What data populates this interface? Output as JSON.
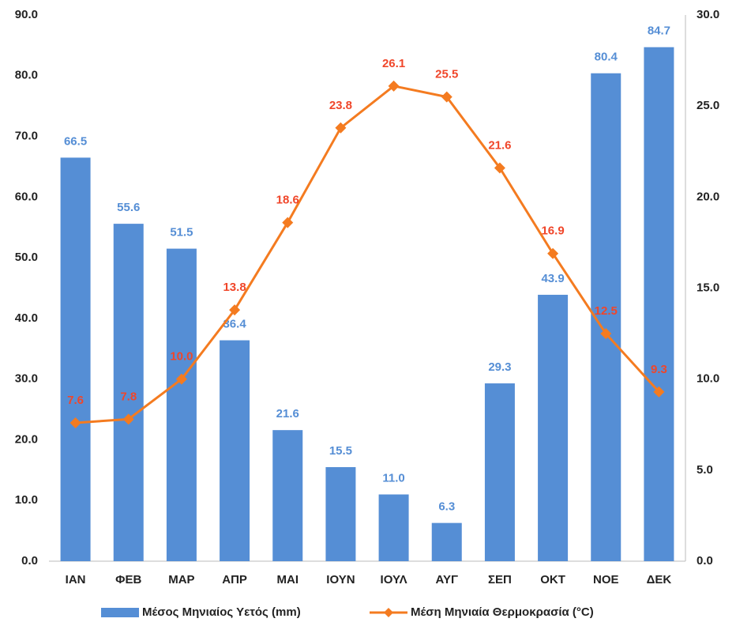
{
  "chart_data": {
    "type": "bar",
    "categories": [
      "ΙΑΝ",
      "ΦΕΒ",
      "ΜΑΡ",
      "ΑΠΡ",
      "ΜΑΙ",
      "ΙΟΥΝ",
      "ΙΟΥΛ",
      "ΑΥΓ",
      "ΣΕΠ",
      "ΟΚΤ",
      "ΝΟΕ",
      "ΔΕΚ"
    ],
    "series": [
      {
        "name": "Μέσος Μηνιαίος Υετός (mm)",
        "type": "bar",
        "color": "#558ed5",
        "label_color": "#558ed5",
        "values": [
          66.5,
          55.6,
          51.5,
          36.4,
          21.6,
          15.5,
          11.0,
          6.3,
          29.3,
          43.9,
          80.4,
          84.7
        ],
        "value_labels": [
          "66.5",
          "55.6",
          "51.5",
          "36.4",
          "21.6",
          "15.5",
          "11.0",
          "6.3",
          "29.3",
          "43.9",
          "80.4",
          "84.7"
        ]
      },
      {
        "name": "Μέση Μηνιαία Θερμοκρασία (°C)",
        "type": "line",
        "axis": "y2",
        "color": "#f47b20",
        "label_color": "#f0462a",
        "values": [
          7.6,
          7.8,
          10.0,
          13.8,
          18.6,
          23.8,
          26.1,
          25.5,
          21.6,
          16.9,
          12.5,
          9.3
        ],
        "value_labels": [
          "7.6",
          "7.8",
          "10.0",
          "13.8",
          "18.6",
          "23.8",
          "26.1",
          "25.5",
          "21.6",
          "16.9",
          "12.5",
          "9.3"
        ]
      }
    ],
    "ylim": [
      0,
      90
    ],
    "yticks": [
      {
        "value": 0,
        "label": "0.0"
      },
      {
        "value": 10,
        "label": "10.0"
      },
      {
        "value": 20,
        "label": "20.0"
      },
      {
        "value": 30,
        "label": "30.0"
      },
      {
        "value": 40,
        "label": "40.0"
      },
      {
        "value": 50,
        "label": "50.0"
      },
      {
        "value": 60,
        "label": "60.0"
      },
      {
        "value": 70,
        "label": "70.0"
      },
      {
        "value": 80,
        "label": "80.0"
      },
      {
        "value": 90,
        "label": "90.0"
      }
    ],
    "y2lim": [
      0,
      30
    ],
    "y2ticks": [
      {
        "value": 0,
        "label": "0.0"
      },
      {
        "value": 5,
        "label": "5.0"
      },
      {
        "value": 10,
        "label": "10.0"
      },
      {
        "value": 15,
        "label": "15.0"
      },
      {
        "value": 20,
        "label": "20.0"
      },
      {
        "value": 25,
        "label": "25.0"
      },
      {
        "value": 30,
        "label": "30.0"
      }
    ],
    "legend": "bottom"
  }
}
